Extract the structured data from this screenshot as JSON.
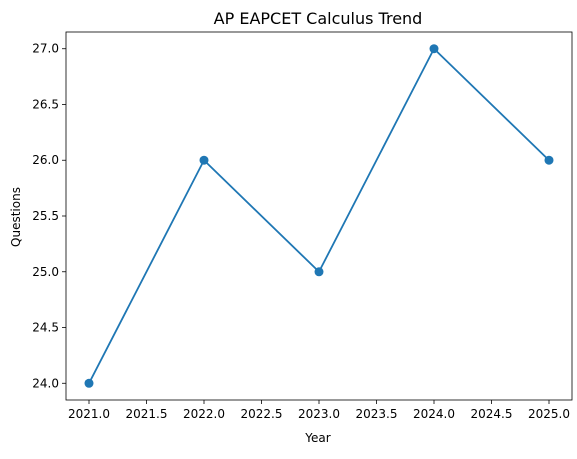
{
  "chart_data": {
    "type": "line",
    "title": "AP EAPCET Calculus Trend",
    "xlabel": "Year",
    "ylabel": "Questions",
    "xlim": [
      2020.8,
      2025.2
    ],
    "ylim": [
      23.85,
      27.15
    ],
    "x_ticks": [
      2021.0,
      2021.5,
      2022.0,
      2022.5,
      2023.0,
      2023.5,
      2024.0,
      2024.5,
      2025.0
    ],
    "y_ticks": [
      24.0,
      24.5,
      25.0,
      25.5,
      26.0,
      26.5,
      27.0
    ],
    "x_tick_labels": [
      "2021.0",
      "2021.5",
      "2022.0",
      "2022.5",
      "2023.0",
      "2023.5",
      "2024.0",
      "2024.5",
      "2025.0"
    ],
    "y_tick_labels": [
      "24.0",
      "24.5",
      "25.0",
      "25.5",
      "26.0",
      "26.5",
      "27.0"
    ],
    "grid": false,
    "legend": false,
    "series": [
      {
        "x": [
          2021,
          2022,
          2023,
          2024,
          2025
        ],
        "y": [
          24,
          26,
          25,
          27,
          26
        ],
        "color": "#1f77b4",
        "marker": "circle"
      }
    ]
  }
}
